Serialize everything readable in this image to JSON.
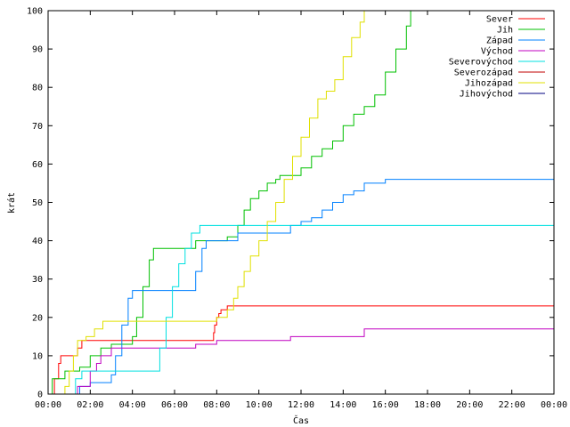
{
  "chart_data": {
    "type": "line",
    "title": "",
    "xlabel": "Čas",
    "ylabel": "krát",
    "xlim": [
      0,
      24
    ],
    "ylim": [
      0,
      100
    ],
    "grid": false,
    "legend_position": "top-right",
    "x_ticks": [
      {
        "value": 0,
        "label": "00:00"
      },
      {
        "value": 2,
        "label": "02:00"
      },
      {
        "value": 4,
        "label": "04:00"
      },
      {
        "value": 6,
        "label": "06:00"
      },
      {
        "value": 8,
        "label": "08:00"
      },
      {
        "value": 10,
        "label": "10:00"
      },
      {
        "value": 12,
        "label": "12:00"
      },
      {
        "value": 14,
        "label": "14:00"
      },
      {
        "value": 16,
        "label": "16:00"
      },
      {
        "value": 18,
        "label": "18:00"
      },
      {
        "value": 20,
        "label": "20:00"
      },
      {
        "value": 22,
        "label": "22:00"
      },
      {
        "value": 24,
        "label": "00:00"
      }
    ],
    "y_ticks": [
      0,
      10,
      20,
      30,
      40,
      50,
      60,
      70,
      80,
      90,
      100
    ],
    "series": [
      {
        "name": "Sever",
        "color": "#ff0000",
        "x": [
          0.2,
          0.3,
          0.5,
          0.6,
          1.4,
          1.6,
          2.0,
          3.0,
          4.0,
          5.0,
          6.0,
          7.0,
          7.8,
          7.85,
          7.9,
          8.0,
          8.1,
          8.2,
          8.3,
          8.5,
          9.0,
          12.0,
          16.0,
          20.0,
          24.0
        ],
        "y": [
          0,
          4,
          8,
          10,
          12,
          14,
          14,
          14,
          14,
          14,
          14,
          14,
          14,
          16,
          18,
          20,
          21,
          22,
          22,
          23,
          23,
          23,
          23,
          23,
          23
        ]
      },
      {
        "name": "Jih",
        "color": "#00c000",
        "x": [
          0.1,
          0.2,
          0.4,
          0.8,
          1.0,
          1.2,
          1.5,
          2.0,
          2.5,
          3.0,
          3.5,
          4.0,
          4.2,
          4.5,
          4.8,
          5.0,
          5.5,
          6.0,
          6.5,
          7.0,
          7.5,
          8.0,
          8.5,
          9.0,
          9.3,
          9.6,
          10.0,
          10.4,
          10.8,
          11.0,
          11.5,
          12.0,
          12.5,
          13.0,
          13.5,
          14.0,
          14.5,
          15.0,
          15.5,
          16.0,
          16.5,
          17.0,
          17.2
        ],
        "y": [
          0,
          4,
          4,
          6,
          6,
          6,
          7,
          10,
          12,
          13,
          13,
          15,
          20,
          28,
          35,
          38,
          38,
          38,
          38,
          40,
          40,
          40,
          41,
          44,
          48,
          51,
          53,
          55,
          56,
          57,
          57,
          59,
          62,
          64,
          66,
          70,
          73,
          75,
          78,
          84,
          90,
          96,
          100
        ]
      },
      {
        "name": "Západ",
        "color": "#0080ff",
        "x": [
          1.0,
          1.5,
          2.0,
          2.5,
          3.0,
          3.2,
          3.5,
          3.8,
          4.0,
          4.5,
          5.0,
          5.5,
          6.0,
          6.5,
          7.0,
          7.3,
          7.5,
          8.0,
          8.5,
          9.0,
          10.0,
          11.0,
          11.5,
          12.0,
          12.5,
          13.0,
          13.5,
          14.0,
          14.5,
          15.0,
          16.0,
          18.0,
          20.0,
          22.0,
          24.0
        ],
        "y": [
          0,
          2,
          3,
          3,
          5,
          10,
          18,
          25,
          27,
          27,
          27,
          27,
          27,
          27,
          32,
          38,
          40,
          40,
          40,
          42,
          42,
          42,
          44,
          45,
          46,
          48,
          50,
          52,
          53,
          55,
          56,
          56,
          56,
          56,
          56
        ]
      },
      {
        "name": "Východ",
        "color": "#c000c0",
        "x": [
          1.2,
          1.4,
          1.8,
          2.0,
          2.3,
          2.5,
          3.0,
          4.0,
          5.0,
          6.0,
          7.0,
          8.0,
          9.0,
          10.0,
          11.0,
          11.5,
          12.0,
          13.0,
          14.0,
          14.5,
          15.0,
          16.0,
          18.0,
          20.0,
          22.0,
          24.0
        ],
        "y": [
          0,
          2,
          2,
          6,
          8,
          10,
          12,
          12,
          12,
          12,
          13,
          14,
          14,
          14,
          14,
          15,
          15,
          15,
          15,
          15,
          17,
          17,
          17,
          17,
          17,
          17
        ]
      },
      {
        "name": "Severovýchod",
        "color": "#00e0e0",
        "x": [
          1.0,
          1.3,
          1.6,
          2.0,
          2.5,
          3.0,
          3.5,
          4.0,
          4.5,
          5.0,
          5.3,
          5.6,
          5.9,
          6.2,
          6.5,
          6.8,
          7.2,
          7.6,
          8.0,
          10.0,
          12.0,
          16.0,
          20.0,
          24.0
        ],
        "y": [
          0,
          4,
          6,
          6,
          6,
          6,
          6,
          6,
          6,
          6,
          12,
          20,
          28,
          34,
          38,
          42,
          44,
          44,
          44,
          44,
          44,
          44,
          44,
          44
        ]
      },
      {
        "name": "Severozápad",
        "color": "#c00000",
        "x": [],
        "y": []
      },
      {
        "name": "Jihozápad",
        "color": "#e0e000",
        "x": [
          0.6,
          0.8,
          1.0,
          1.2,
          1.4,
          1.8,
          2.2,
          2.6,
          3.0,
          3.5,
          4.0,
          5.0,
          6.0,
          7.0,
          8.0,
          8.5,
          8.8,
          9.0,
          9.3,
          9.6,
          10.0,
          10.4,
          10.8,
          11.2,
          11.6,
          12.0,
          12.4,
          12.8,
          13.2,
          13.6,
          14.0,
          14.4,
          14.8,
          15.0
        ],
        "y": [
          0,
          2,
          6,
          10,
          14,
          15,
          17,
          19,
          19,
          19,
          19,
          19,
          19,
          19,
          20,
          22,
          25,
          28,
          32,
          36,
          40,
          45,
          50,
          56,
          62,
          67,
          72,
          77,
          79,
          82,
          88,
          93,
          97,
          100
        ]
      },
      {
        "name": "Jihovýchod",
        "color": "#000080",
        "x": [],
        "y": []
      }
    ]
  }
}
